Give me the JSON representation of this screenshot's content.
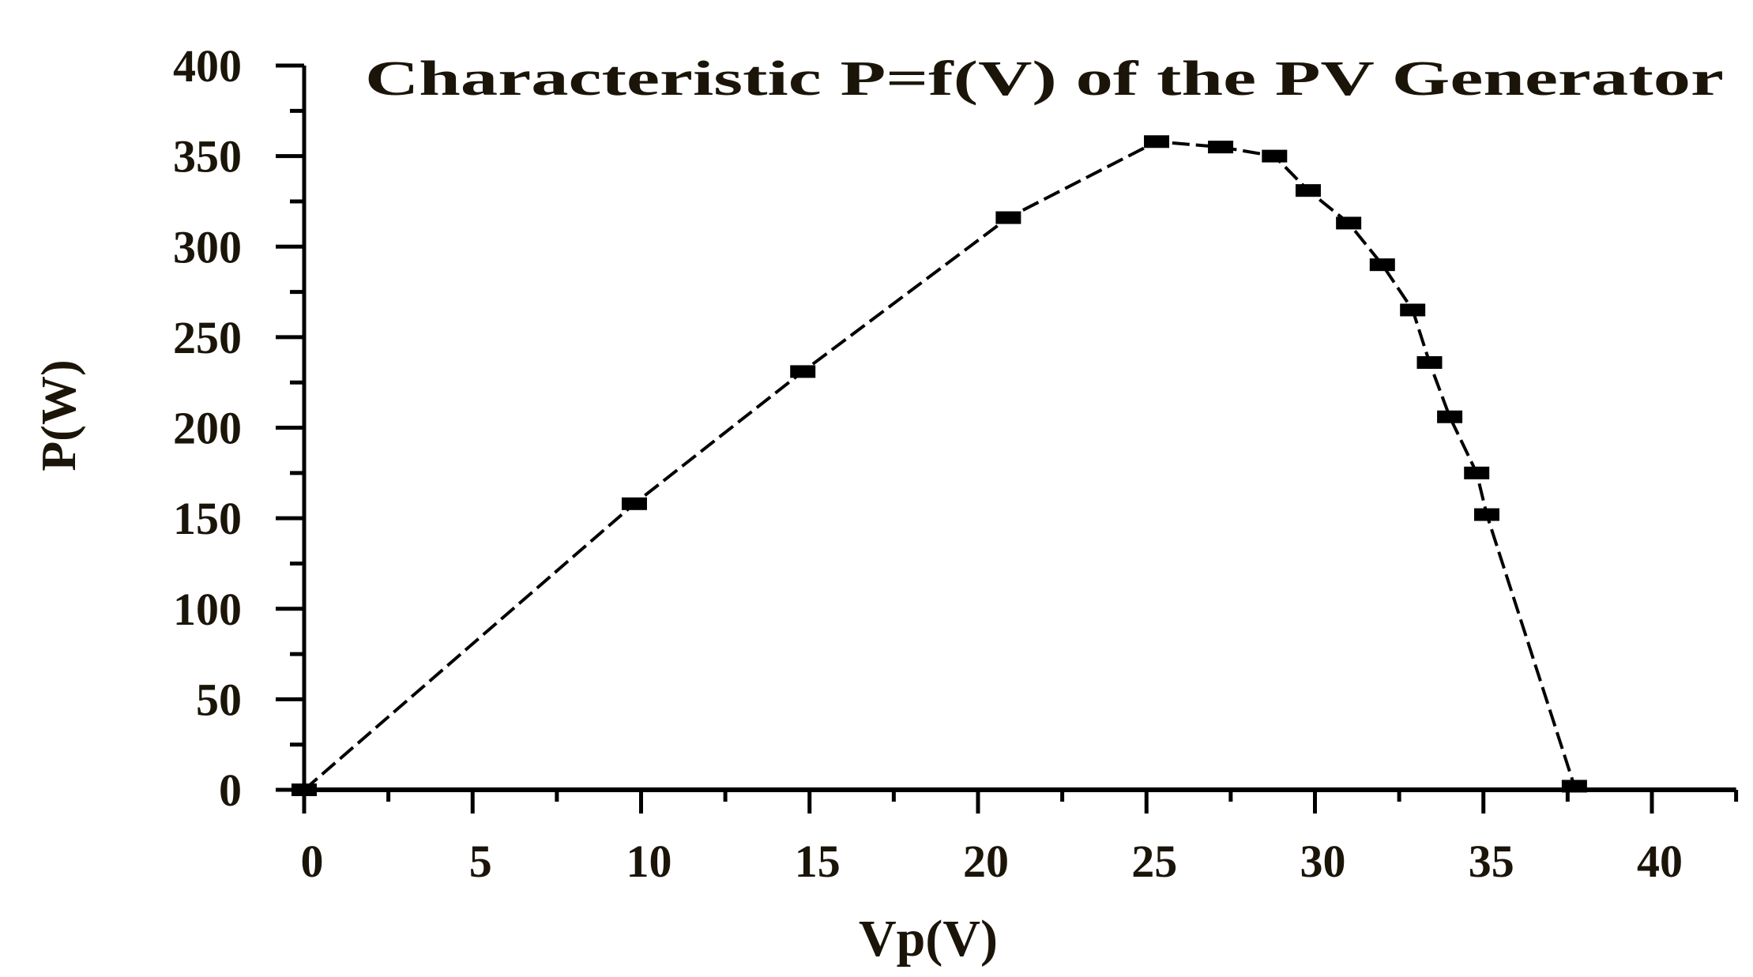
{
  "chart_data": {
    "type": "line",
    "title": "Characteristic P=f(V) of the PV Generator",
    "xlabel": "Vp(V)",
    "ylabel": "P(W)",
    "xlim": [
      0,
      42.5
    ],
    "ylim": [
      0,
      400
    ],
    "xticks": [
      0,
      5,
      10,
      15,
      20,
      25,
      30,
      35,
      40
    ],
    "yticks": [
      0,
      50,
      100,
      150,
      200,
      250,
      300,
      350,
      400
    ],
    "xtick_labels": [
      "0",
      "5",
      "10",
      "15",
      "20",
      "25",
      "30",
      "35",
      "40"
    ],
    "ytick_labels": [
      "0",
      "50",
      "100",
      "150",
      "200",
      "250",
      "300",
      "350",
      "400"
    ],
    "grid": false,
    "legend": "none",
    "marker": "square",
    "line_style": "dotted",
    "color": "#000000",
    "series": [
      {
        "name": "P",
        "x": [
          0,
          9.8,
          14.8,
          20.9,
          25.3,
          27.2,
          28.8,
          29.8,
          31.0,
          32.0,
          32.9,
          33.4,
          34.0,
          34.8,
          35.1,
          37.7
        ],
        "y": [
          0,
          158,
          231,
          316,
          358,
          355,
          350,
          331,
          313,
          290,
          265,
          236,
          206,
          175,
          152,
          2
        ]
      }
    ]
  }
}
